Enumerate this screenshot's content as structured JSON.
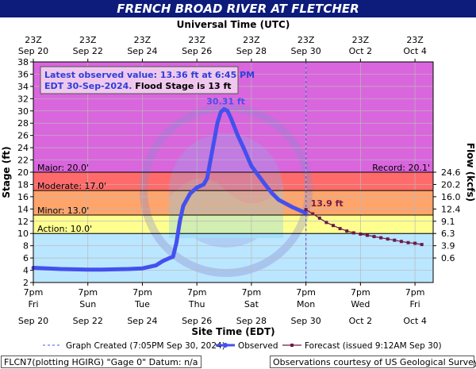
{
  "title": "FRENCH BROAD RIVER AT FLETCHER",
  "top_axis_label": "Universal Time (UTC)",
  "bottom_axis_label": "Site Time (EDT)",
  "left_axis_label": "Stage (ft)",
  "right_axis_label": "Flow (kcfs)",
  "info_box": {
    "line1": "Latest observed value: 13.36 ft at 6:45 PM",
    "line2_a": "EDT 30-Sep-2024.",
    "line2_b": " Flood Stage is 13 ft"
  },
  "legend": {
    "created": "Graph Created (7:05PM Sep 30, 2024)",
    "observed": "Observed",
    "forecast": "Forecast (issued 9:12AM Sep 30)"
  },
  "footer": {
    "left": "FLCN7(plotting HGIRG) \"Gage 0\" Datum: n/a",
    "right": "Observations courtesy of US Geological Survey"
  },
  "colors": {
    "title_bg": "#0d1b7a",
    "major": "#d966dd",
    "major_band": "#ff6b6b",
    "moderate_band": "#ffa46b",
    "minor_band": "#ffff90",
    "action_band": "#ffffc6",
    "below_action": "#bbe6ff",
    "observed": "#4450ee",
    "forecast": "#6a1b4a"
  },
  "chart_data": {
    "type": "line",
    "ylim": [
      2,
      38
    ],
    "y_ticks": [
      2,
      4,
      6,
      8,
      10,
      12,
      14,
      16,
      18,
      20,
      22,
      24,
      26,
      28,
      30,
      32,
      34,
      36,
      38
    ],
    "x_range": [
      "2024-09-20T19:00",
      "2024-10-05T11:00"
    ],
    "bottom_ticks": [
      {
        "line1": "7pm",
        "line2": "Fri",
        "line3": "Sep 20"
      },
      {
        "line1": "7pm",
        "line2": "Sun",
        "line3": "Sep 22"
      },
      {
        "line1": "7pm",
        "line2": "Tue",
        "line3": "Sep 24"
      },
      {
        "line1": "7pm",
        "line2": "Thu",
        "line3": "Sep 26"
      },
      {
        "line1": "7pm",
        "line2": "Sat",
        "line3": "Sep 28"
      },
      {
        "line1": "7pm",
        "line2": "Mon",
        "line3": "Sep 30"
      },
      {
        "line1": "7pm",
        "line2": "Wed",
        "line3": "Oct 2"
      },
      {
        "line1": "7pm",
        "line2": "Fri",
        "line3": "Oct 4"
      }
    ],
    "top_ticks": [
      {
        "line1": "23Z",
        "line2": "Sep 20"
      },
      {
        "line1": "23Z",
        "line2": "Sep 22"
      },
      {
        "line1": "23Z",
        "line2": "Sep 24"
      },
      {
        "line1": "23Z",
        "line2": "Sep 26"
      },
      {
        "line1": "23Z",
        "line2": "Sep 28"
      },
      {
        "line1": "23Z",
        "line2": "Sep 30"
      },
      {
        "line1": "23Z",
        "line2": "Oct 2"
      },
      {
        "line1": "23Z",
        "line2": "Oct 4"
      }
    ],
    "flow_ticks": [
      {
        "label": "24.6",
        "stage": 20
      },
      {
        "label": "20.2",
        "stage": 18
      },
      {
        "label": "16.0",
        "stage": 16
      },
      {
        "label": "12.4",
        "stage": 14
      },
      {
        "label": "9.1",
        "stage": 12
      },
      {
        "label": "6.3",
        "stage": 10
      },
      {
        "label": "3.9",
        "stage": 8
      },
      {
        "label": "0.6",
        "stage": 6
      }
    ],
    "thresholds": [
      {
        "name": "major",
        "label": "Major: 20.0'",
        "stage": 20.0
      },
      {
        "name": "moderate",
        "label": "Moderate: 17.0'",
        "stage": 17.0
      },
      {
        "name": "minor",
        "label": "Minor: 13.0'",
        "stage": 13.0
      },
      {
        "name": "action",
        "label": "Action: 10.0'",
        "stage": 10.0
      }
    ],
    "record_label": "Record: 20.1'",
    "peak_label": "30.31 ft",
    "forecast_label": "13.9 ft",
    "graph_created": "2024-09-30T19:05",
    "observed": [
      [
        "2024-09-20T19:00",
        4.4
      ],
      [
        "2024-09-21T07:00",
        4.3
      ],
      [
        "2024-09-21T19:00",
        4.2
      ],
      [
        "2024-09-22T07:00",
        4.15
      ],
      [
        "2024-09-22T19:00",
        4.1
      ],
      [
        "2024-09-23T07:00",
        4.1
      ],
      [
        "2024-09-23T19:00",
        4.15
      ],
      [
        "2024-09-24T07:00",
        4.2
      ],
      [
        "2024-09-24T19:00",
        4.3
      ],
      [
        "2024-09-25T07:00",
        4.8
      ],
      [
        "2024-09-25T13:00",
        5.5
      ],
      [
        "2024-09-25T19:00",
        6.0
      ],
      [
        "2024-09-25T22:00",
        6.2
      ],
      [
        "2024-09-26T01:00",
        8.5
      ],
      [
        "2024-09-26T04:00",
        12.0
      ],
      [
        "2024-09-26T07:00",
        14.5
      ],
      [
        "2024-09-26T13:00",
        16.5
      ],
      [
        "2024-09-26T19:00",
        17.5
      ],
      [
        "2024-09-27T01:00",
        18.0
      ],
      [
        "2024-09-27T04:00",
        19.0
      ],
      [
        "2024-09-27T07:00",
        22.0
      ],
      [
        "2024-09-27T10:00",
        25.0
      ],
      [
        "2024-09-27T13:00",
        28.0
      ],
      [
        "2024-09-27T16:00",
        29.8
      ],
      [
        "2024-09-27T19:00",
        30.31
      ],
      [
        "2024-09-27T22:00",
        30.0
      ],
      [
        "2024-09-28T01:00",
        28.8
      ],
      [
        "2024-09-28T07:00",
        26.0
      ],
      [
        "2024-09-28T13:00",
        23.6
      ],
      [
        "2024-09-28T19:00",
        21.0
      ],
      [
        "2024-09-29T01:00",
        19.5
      ],
      [
        "2024-09-29T07:00",
        18.0
      ],
      [
        "2024-09-29T13:00",
        16.6
      ],
      [
        "2024-09-29T19:00",
        15.5
      ],
      [
        "2024-09-30T07:00",
        14.3
      ],
      [
        "2024-09-30T18:45",
        13.36
      ]
    ],
    "forecast": [
      [
        "2024-09-30T19:00",
        13.9
      ],
      [
        "2024-10-01T01:00",
        13.2
      ],
      [
        "2024-10-01T07:00",
        12.5
      ],
      [
        "2024-10-01T13:00",
        11.8
      ],
      [
        "2024-10-01T19:00",
        11.3
      ],
      [
        "2024-10-02T01:00",
        10.8
      ],
      [
        "2024-10-02T07:00",
        10.4
      ],
      [
        "2024-10-02T13:00",
        10.1
      ],
      [
        "2024-10-02T19:00",
        9.9
      ],
      [
        "2024-10-03T01:00",
        9.7
      ],
      [
        "2024-10-03T07:00",
        9.5
      ],
      [
        "2024-10-03T13:00",
        9.3
      ],
      [
        "2024-10-03T19:00",
        9.1
      ],
      [
        "2024-10-04T01:00",
        8.9
      ],
      [
        "2024-10-04T07:00",
        8.7
      ],
      [
        "2024-10-04T13:00",
        8.5
      ],
      [
        "2024-10-04T19:00",
        8.4
      ],
      [
        "2024-10-05T01:00",
        8.2
      ]
    ]
  }
}
